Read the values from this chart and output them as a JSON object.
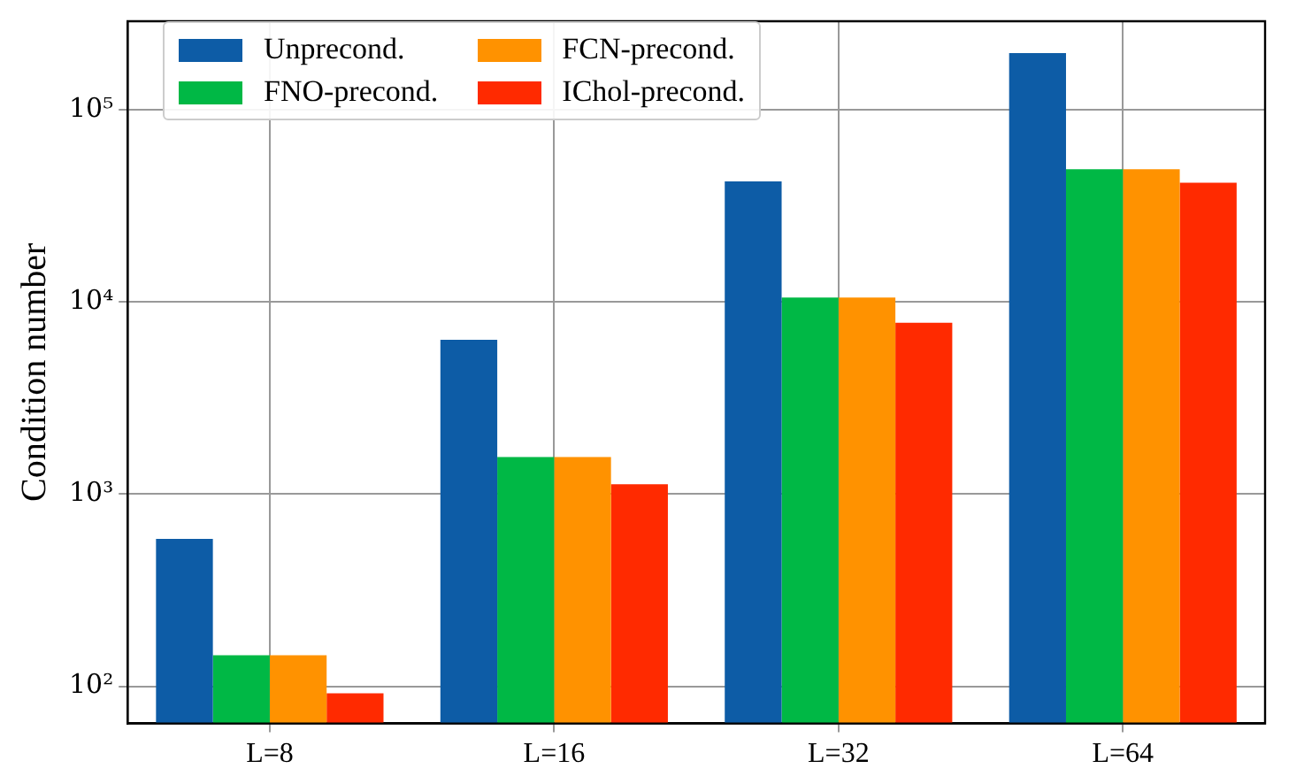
{
  "chart_data": {
    "type": "bar",
    "ylabel": "Condition number",
    "log": true,
    "grid": true,
    "legend": "top left",
    "categories": [
      "L=8",
      "L=16",
      "L=32",
      "L=64"
    ],
    "series": [
      {
        "name": "Unprecond.",
        "color": "#0d5ca6",
        "values": [
          585,
          6360,
          42500,
          198000
        ]
      },
      {
        "name": "FNO-precond.",
        "color": "#00b845",
        "values": [
          145,
          1560,
          10550,
          49200
        ]
      },
      {
        "name": "FCN-precond.",
        "color": "#ff9200",
        "values": [
          145,
          1560,
          10550,
          49200
        ]
      },
      {
        "name": "IChol-precond.",
        "color": "#ff2a00",
        "values": [
          92,
          1125,
          7810,
          41800
        ]
      }
    ],
    "ylim": [
      64,
      290000
    ],
    "yticks": [
      {
        "value": 100,
        "label": "10²"
      },
      {
        "value": 1000,
        "label": "10³"
      },
      {
        "value": 10000,
        "label": "10⁴"
      },
      {
        "value": 100000,
        "label": "10⁵"
      }
    ]
  }
}
